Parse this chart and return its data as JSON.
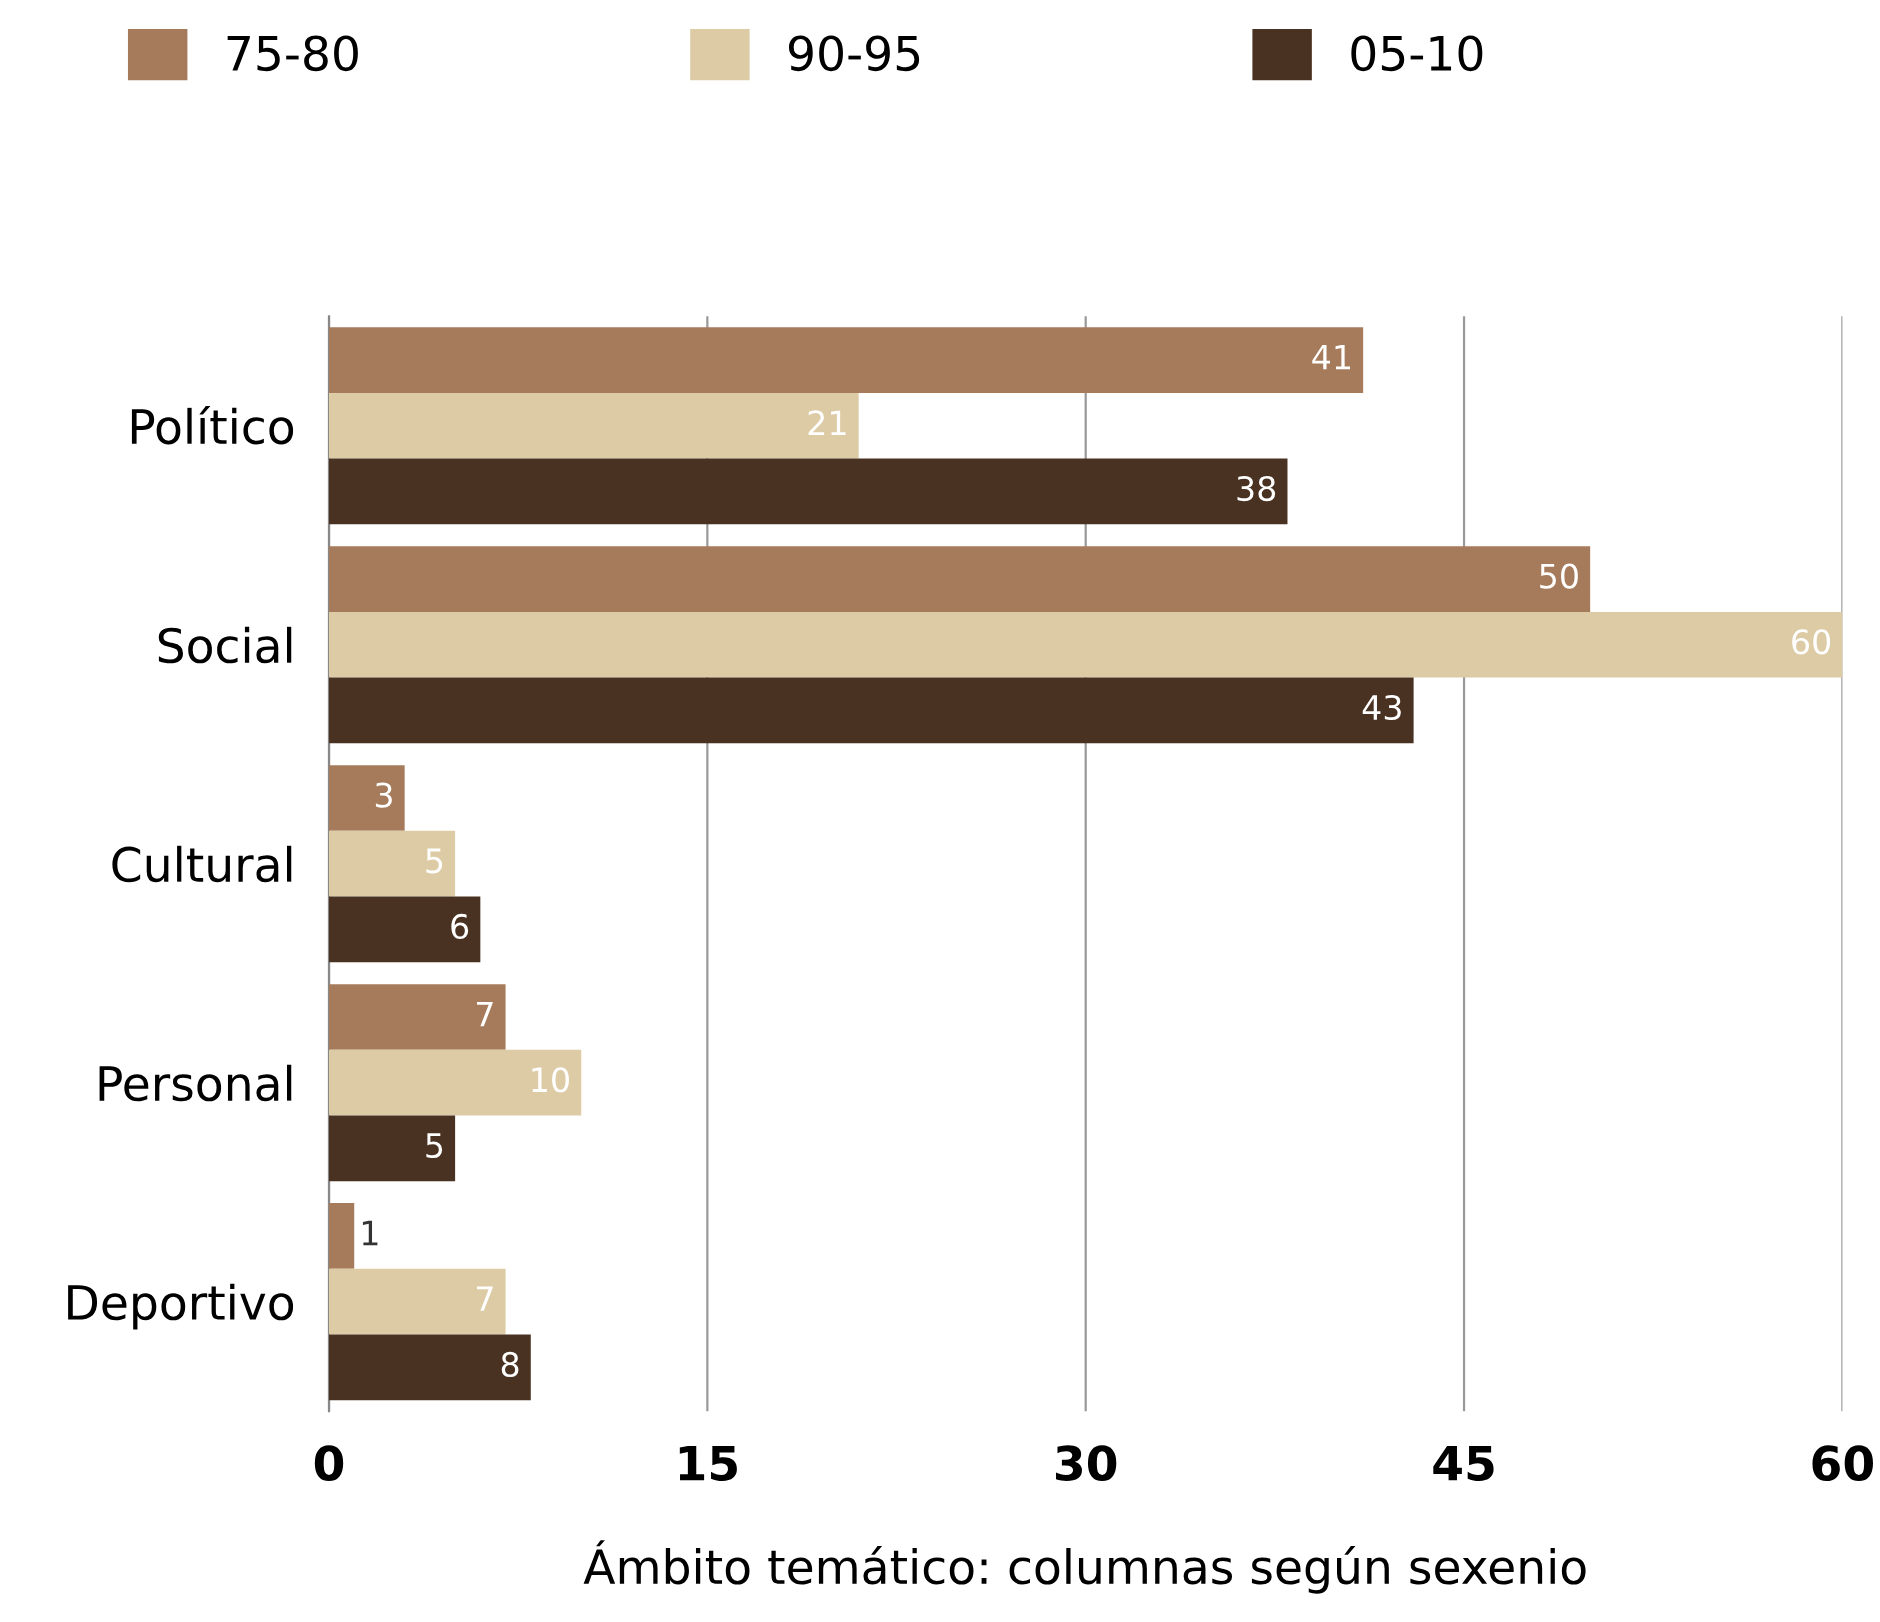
{
  "chart_data": {
    "type": "bar",
    "orientation": "horizontal",
    "xlabel": "Ámbito temático: columnas según sexenio",
    "categories": [
      "Político",
      "Social",
      "Cultural",
      "Personal",
      "Deportivo"
    ],
    "series": [
      {
        "name": "75-80",
        "color": "#a67b5b",
        "values": [
          41,
          50,
          3,
          7,
          1
        ]
      },
      {
        "name": "90-95",
        "color": "#dccba5",
        "values": [
          21,
          60,
          5,
          10,
          7
        ]
      },
      {
        "name": "05-10",
        "color": "#4a3222",
        "values": [
          38,
          43,
          6,
          5,
          8
        ]
      }
    ],
    "xlim": [
      0,
      60
    ],
    "xticks": [
      0,
      15,
      30,
      45,
      60
    ],
    "grid": "x",
    "legend": "top",
    "data_labels": true
  }
}
